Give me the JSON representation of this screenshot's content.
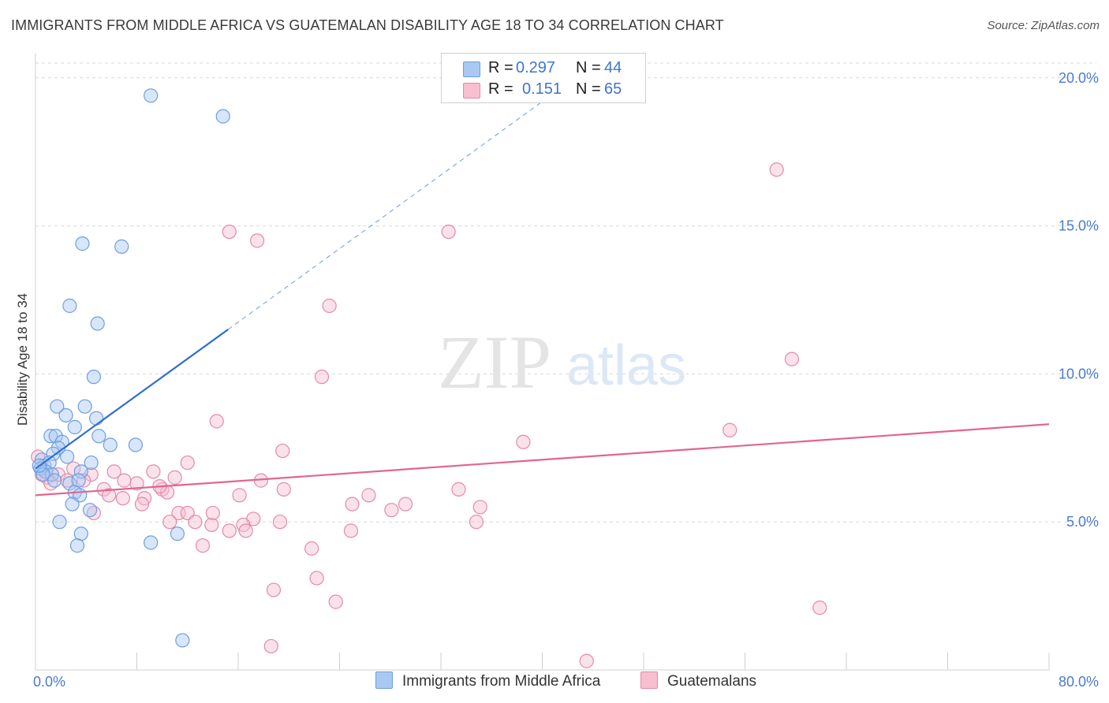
{
  "header": {
    "title": "IMMIGRANTS FROM MIDDLE AFRICA VS GUATEMALAN DISABILITY AGE 18 TO 34 CORRELATION CHART",
    "source": "Source: ZipAtlas.com"
  },
  "watermark": {
    "zip": "ZIP",
    "atlas": "atlas"
  },
  "legend": {
    "rows": [
      {
        "r_key": "R =",
        "r_value": "0.297",
        "n_key": "N =",
        "n_value": "44",
        "color": "#a9c8f2"
      },
      {
        "r_key": "R =",
        "r_value": "0.151",
        "n_key": "N =",
        "n_value": "65",
        "color": "#f7bfd0"
      }
    ]
  },
  "colors": {
    "blue_fill": "#a9c8f2",
    "blue_stroke": "#6f9ee0",
    "blue_line": "#2f6fcf",
    "pink_fill": "#f7bfd0",
    "pink_stroke": "#e48aa7",
    "pink_line": "#e2658f",
    "grid": "#d9d9d9",
    "axis_label": "#4a7bd0"
  },
  "chart_data": {
    "type": "scatter",
    "title": "IMMIGRANTS FROM MIDDLE AFRICA VS GUATEMALAN DISABILITY AGE 18 TO 34 CORRELATION CHART",
    "xlabel": "",
    "ylabel": "Disability Age 18 to 34",
    "xlim": [
      0,
      80
    ],
    "ylim": [
      0,
      20.5
    ],
    "x_tick_labels": [
      "0.0%",
      "80.0%"
    ],
    "y_ticks": [
      5,
      10,
      15,
      20
    ],
    "y_tick_labels": [
      "5.0%",
      "10.0%",
      "15.0%",
      "20.0%"
    ],
    "x_minor_ticks": [
      0,
      8,
      16,
      24,
      32,
      40,
      48,
      56,
      64,
      72,
      80
    ],
    "grid": true,
    "legend_position": "top-center",
    "series": [
      {
        "name": "Immigrants from Middle Africa",
        "R": 0.297,
        "N": 44,
        "trend": {
          "x0": 0,
          "y0": 6.8,
          "x1": 15.2,
          "y1": 11.5,
          "dashed_to_x": 40,
          "dashed_to_y": 19.2
        },
        "points": [
          [
            9.1,
            19.4
          ],
          [
            14.8,
            18.7
          ],
          [
            3.7,
            14.4
          ],
          [
            6.8,
            14.3
          ],
          [
            2.7,
            12.3
          ],
          [
            4.9,
            11.7
          ],
          [
            4.6,
            9.9
          ],
          [
            1.7,
            8.9
          ],
          [
            3.9,
            8.9
          ],
          [
            2.4,
            8.6
          ],
          [
            4.8,
            8.5
          ],
          [
            3.1,
            8.2
          ],
          [
            1.2,
            7.9
          ],
          [
            1.6,
            7.9
          ],
          [
            5.0,
            7.9
          ],
          [
            2.1,
            7.7
          ],
          [
            5.9,
            7.6
          ],
          [
            7.9,
            7.6
          ],
          [
            1.8,
            7.5
          ],
          [
            2.5,
            7.2
          ],
          [
            1.4,
            7.3
          ],
          [
            0.5,
            7.1
          ],
          [
            0.7,
            6.9
          ],
          [
            1.1,
            7.0
          ],
          [
            4.4,
            7.0
          ],
          [
            0.4,
            6.8
          ],
          [
            0.8,
            6.7
          ],
          [
            3.6,
            6.7
          ],
          [
            1.3,
            6.6
          ],
          [
            0.6,
            6.6
          ],
          [
            1.5,
            6.4
          ],
          [
            2.7,
            6.3
          ],
          [
            3.4,
            6.4
          ],
          [
            3.1,
            6.0
          ],
          [
            3.5,
            5.9
          ],
          [
            2.9,
            5.6
          ],
          [
            4.3,
            5.4
          ],
          [
            1.9,
            5.0
          ],
          [
            3.6,
            4.6
          ],
          [
            11.2,
            4.6
          ],
          [
            3.3,
            4.2
          ],
          [
            9.1,
            4.3
          ],
          [
            11.6,
            1.0
          ],
          [
            0.3,
            6.9
          ]
        ]
      },
      {
        "name": "Guatemalans",
        "R": 0.151,
        "N": 65,
        "trend": {
          "x0": 0,
          "y0": 5.9,
          "x1": 80,
          "y1": 8.3
        },
        "points": [
          [
            58.5,
            16.9
          ],
          [
            15.3,
            14.8
          ],
          [
            32.6,
            14.8
          ],
          [
            17.5,
            14.5
          ],
          [
            23.2,
            12.3
          ],
          [
            22.6,
            9.9
          ],
          [
            59.7,
            10.5
          ],
          [
            14.3,
            8.4
          ],
          [
            54.8,
            8.1
          ],
          [
            38.5,
            7.7
          ],
          [
            19.5,
            7.4
          ],
          [
            12.0,
            7.0
          ],
          [
            0.2,
            7.2
          ],
          [
            3.0,
            6.8
          ],
          [
            6.2,
            6.7
          ],
          [
            9.3,
            6.7
          ],
          [
            4.4,
            6.6
          ],
          [
            1.8,
            6.6
          ],
          [
            0.9,
            6.5
          ],
          [
            3.8,
            6.4
          ],
          [
            7.0,
            6.4
          ],
          [
            11.0,
            6.5
          ],
          [
            8.0,
            6.3
          ],
          [
            17.8,
            6.4
          ],
          [
            1.2,
            6.3
          ],
          [
            5.4,
            6.1
          ],
          [
            10.0,
            6.1
          ],
          [
            10.4,
            6.0
          ],
          [
            19.6,
            6.1
          ],
          [
            33.4,
            6.1
          ],
          [
            5.8,
            5.9
          ],
          [
            6.9,
            5.8
          ],
          [
            8.6,
            5.8
          ],
          [
            16.1,
            5.9
          ],
          [
            26.3,
            5.9
          ],
          [
            8.4,
            5.6
          ],
          [
            25.0,
            5.6
          ],
          [
            29.2,
            5.6
          ],
          [
            35.1,
            5.5
          ],
          [
            28.1,
            5.4
          ],
          [
            4.6,
            5.3
          ],
          [
            11.3,
            5.3
          ],
          [
            12.0,
            5.3
          ],
          [
            10.6,
            5.0
          ],
          [
            12.6,
            5.0
          ],
          [
            17.2,
            5.1
          ],
          [
            19.3,
            5.0
          ],
          [
            34.8,
            5.0
          ],
          [
            13.9,
            4.9
          ],
          [
            15.3,
            4.7
          ],
          [
            16.4,
            4.9
          ],
          [
            16.6,
            4.7
          ],
          [
            24.9,
            4.7
          ],
          [
            13.2,
            4.2
          ],
          [
            21.8,
            4.1
          ],
          [
            22.2,
            3.1
          ],
          [
            18.8,
            2.7
          ],
          [
            23.7,
            2.3
          ],
          [
            61.9,
            2.1
          ],
          [
            18.6,
            0.8
          ],
          [
            43.5,
            0.3
          ],
          [
            0.5,
            6.6
          ],
          [
            2.5,
            6.4
          ],
          [
            9.8,
            6.2
          ],
          [
            14.0,
            5.3
          ]
        ]
      }
    ]
  },
  "bottom_legend": {
    "items": [
      {
        "label": "Immigrants from Middle Africa",
        "color": "#a9c8f2"
      },
      {
        "label": "Guatemalans",
        "color": "#f7bfd0"
      }
    ]
  }
}
